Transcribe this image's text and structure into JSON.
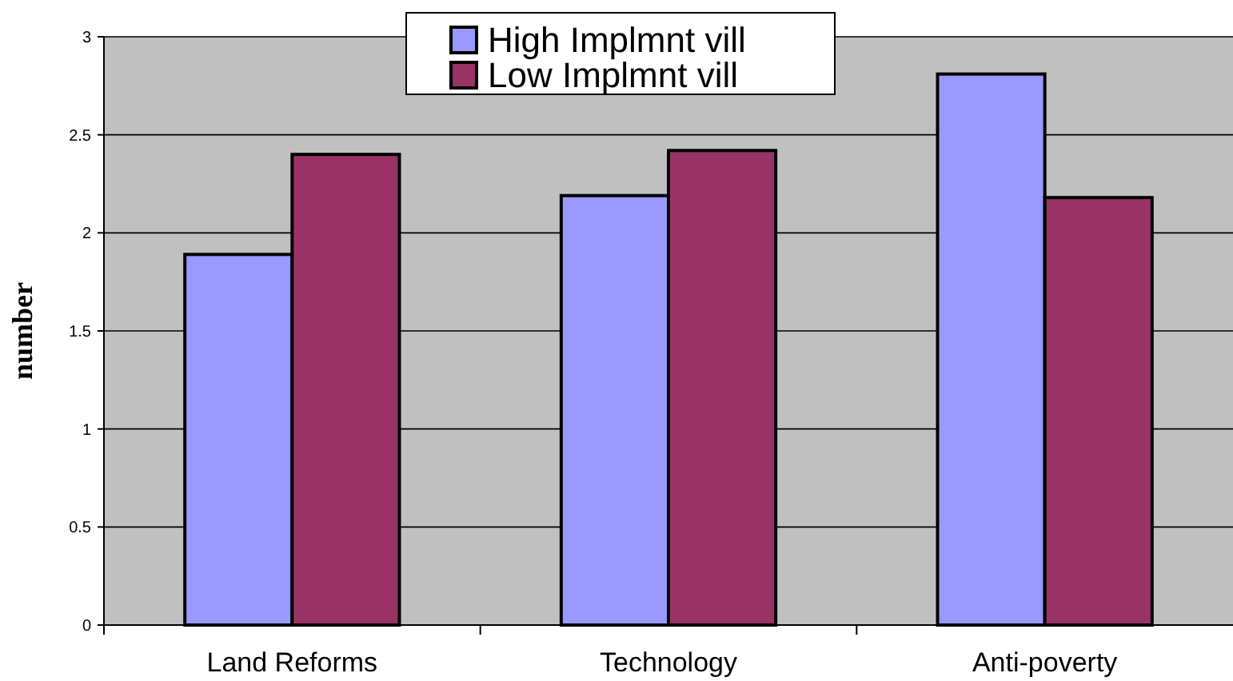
{
  "chart_data": {
    "type": "bar",
    "ylabel": "number",
    "categories": [
      "Land Reforms",
      "Technology",
      "Anti-poverty"
    ],
    "series": [
      {
        "name": "High Implmnt vill",
        "color": "#9999ff",
        "values": [
          1.89,
          2.19,
          2.81
        ]
      },
      {
        "name": "Low Implmnt vill",
        "color": "#993366",
        "values": [
          2.4,
          2.42,
          2.18
        ]
      }
    ],
    "ylim": [
      0,
      3
    ],
    "yticks": [
      0,
      0.5,
      1,
      1.5,
      2,
      2.5,
      3
    ],
    "grid": "y",
    "legend": "top"
  }
}
